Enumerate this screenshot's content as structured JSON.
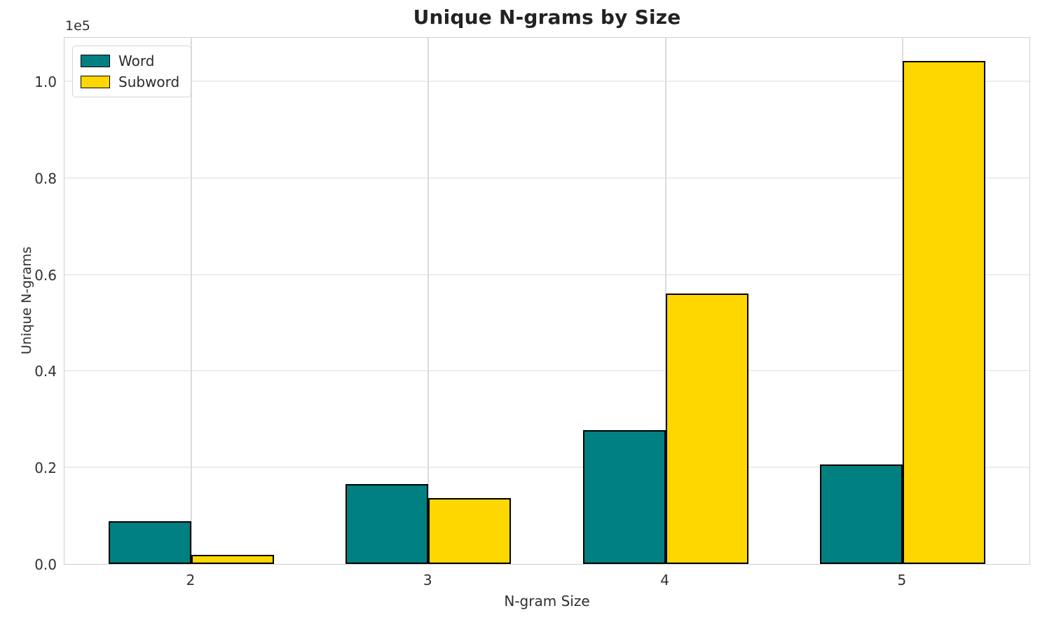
{
  "chart_data": {
    "type": "bar",
    "title": "Unique N-grams by Size",
    "xlabel": "N-gram Size",
    "ylabel": "Unique N-grams",
    "y_offset_label": "1e5",
    "categories": [
      "2",
      "3",
      "4",
      "5"
    ],
    "series": [
      {
        "name": "Word",
        "color": "#008080",
        "values": [
          8900,
          16500,
          27700,
          20600
        ]
      },
      {
        "name": "Subword",
        "color": "#FFD700",
        "values": [
          1900,
          13700,
          56100,
          104200
        ]
      }
    ],
    "ylim": [
      0,
      109300
    ],
    "ytick_values": [
      0,
      20000,
      40000,
      60000,
      80000,
      100000
    ],
    "ytick_labels": [
      "0.0",
      "0.2",
      "0.4",
      "0.6",
      "0.8",
      "1.0"
    ],
    "grid": true,
    "legend_position": "upper left",
    "bar_edge_color": "#000000"
  }
}
